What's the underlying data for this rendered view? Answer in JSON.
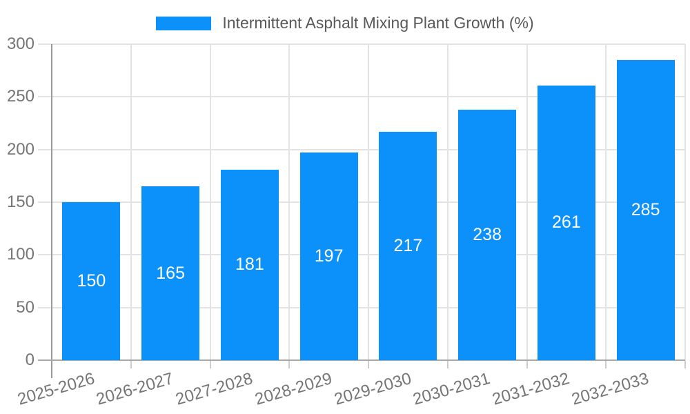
{
  "chart_data": {
    "type": "bar",
    "title": "Intermittent Asphalt Mixing Plant Growth (%)",
    "categories": [
      "2025-2026",
      "2026-2027",
      "2027-2028",
      "2028-2029",
      "2029-2030",
      "2030-2031",
      "2031-2032",
      "2032-2033"
    ],
    "values": [
      150,
      165,
      181,
      197,
      217,
      238,
      261,
      285
    ],
    "xlabel": "",
    "ylabel": "",
    "ylim": [
      0,
      300
    ],
    "yticks": [
      0,
      50,
      100,
      150,
      200,
      250,
      300
    ],
    "grid": true,
    "legend_position": "top",
    "x_label_rotation": -16,
    "colors": {
      "bar": "#0c90fa",
      "bar_value_label": "#ffffff",
      "axis_tick_label": "#757575",
      "legend_text": "#595959",
      "gridline": "#e3e3e3",
      "axis_line": "#999999"
    }
  }
}
